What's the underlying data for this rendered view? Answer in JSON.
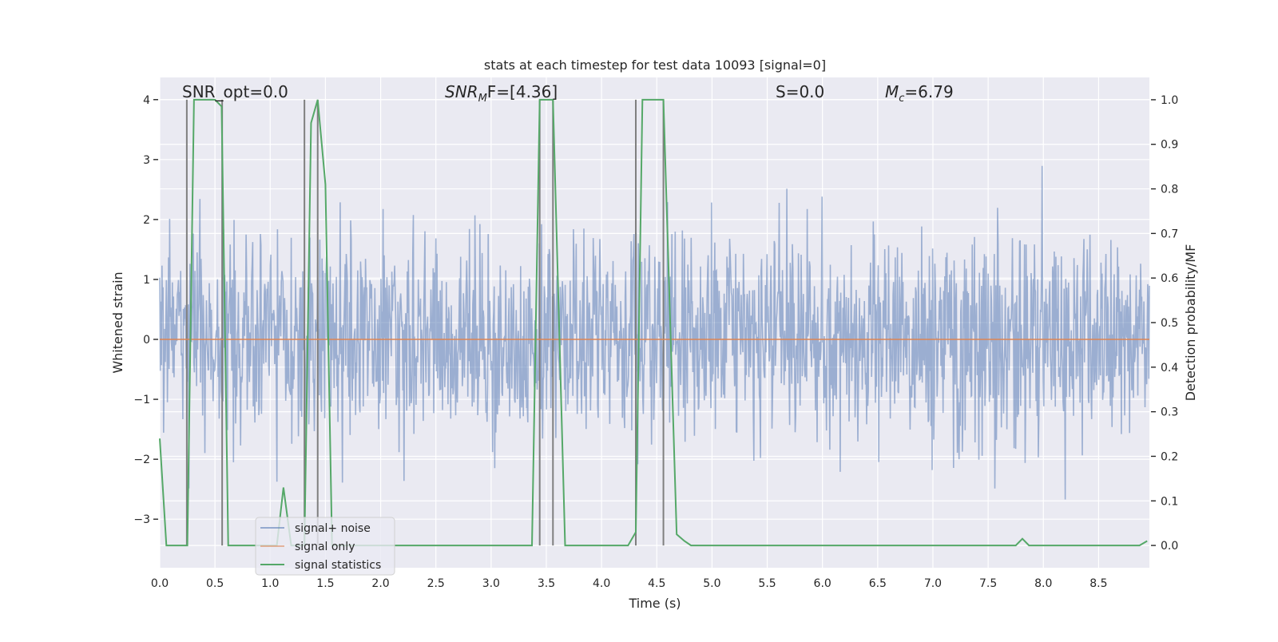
{
  "chart_data": {
    "type": "line",
    "title": "stats at each timestep for test data 10093 [signal=0]",
    "xlabel": "Time (s)",
    "ylabel": "Whitened strain",
    "ylabel_right": "Detection probability/MF",
    "xlim": [
      0,
      8.96
    ],
    "ylim": [
      -3.81,
      4.37
    ],
    "ylim_right": [
      -0.05,
      1.05
    ],
    "grid": true,
    "legend_placement": "lower-left",
    "xticks": [
      "0.0",
      "0.5",
      "1.0",
      "1.5",
      "2.0",
      "2.5",
      "3.0",
      "3.5",
      "4.0",
      "4.5",
      "5.0",
      "5.5",
      "6.0",
      "6.5",
      "7.0",
      "7.5",
      "8.0",
      "8.5"
    ],
    "yticks": [
      "−3",
      "−2",
      "−1",
      "0",
      "1",
      "2",
      "3",
      "4"
    ],
    "yticks_right": [
      "0.0",
      "0.1",
      "0.2",
      "0.3",
      "0.4",
      "0.5",
      "0.6",
      "0.7",
      "0.8",
      "0.9",
      "1.0"
    ],
    "annotations": [
      {
        "label": "SNR_opt=0.0",
        "main": "SNR_opt=0.0",
        "sub": "",
        "rest": ""
      },
      {
        "label": "SNR_MF=[4.36]",
        "main": "SNR",
        "sub": "M",
        "rest": "F=[4.36]"
      },
      {
        "label": "S=0.0",
        "main": "S",
        "sub": "",
        "rest": "=0.0"
      },
      {
        "label": "M_c=6.79",
        "main": "M",
        "sub": "c",
        "rest": "=6.79"
      }
    ],
    "series": [
      {
        "name": "signal+ noise",
        "color": "#4c72b0",
        "alpha": 0.5,
        "axis": "left",
        "noise_std": 0.85,
        "n_samples": 1800
      },
      {
        "name": "signal only",
        "color": "#dd8452",
        "axis": "left",
        "x": [
          0,
          8.96
        ],
        "y": [
          0,
          0
        ]
      },
      {
        "name": "signal statistics",
        "color": "#55a868",
        "axis": "right",
        "x": [
          0,
          0.06,
          0.25,
          0.31,
          0.5,
          0.56,
          0.62,
          1.06,
          1.12,
          1.19,
          1.31,
          1.37,
          1.43,
          1.5,
          1.56,
          3.37,
          3.44,
          3.56,
          3.67,
          4.24,
          4.31,
          4.37,
          4.56,
          4.68,
          4.75,
          4.81,
          7.75,
          7.81,
          7.87,
          8.87,
          8.94
        ],
        "y": [
          0.24,
          0,
          0,
          1.0,
          1.0,
          0.985,
          0,
          0,
          0.13,
          0,
          0,
          0.948,
          1.0,
          0.81,
          0,
          0,
          1.0,
          1.0,
          0,
          0,
          0.03,
          1.0,
          1.0,
          0.025,
          0.01,
          0,
          0,
          0.015,
          0,
          0,
          0.01
        ]
      }
    ],
    "event_lines": {
      "color": "#7f7f7f",
      "x": [
        0.245,
        0.565,
        1.31,
        1.43,
        3.44,
        3.56,
        4.31,
        4.56
      ],
      "y_range": [
        0,
        1
      ]
    }
  }
}
